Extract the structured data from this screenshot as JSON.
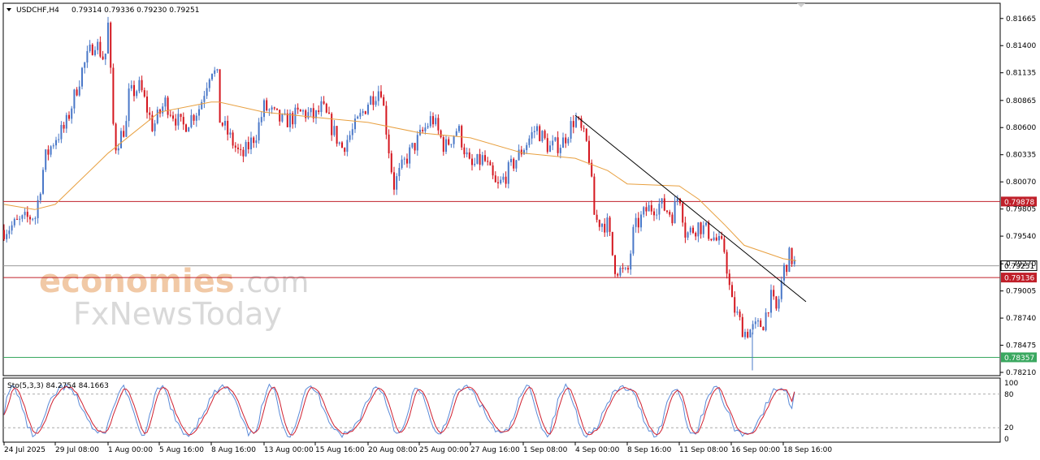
{
  "header": {
    "symbol": "USDCHF,H4",
    "ohlc": "0.79314 0.79336 0.79230 0.79251",
    "stoch_label": "Sto(5,3,3) 84.2754 84.1663"
  },
  "watermark": {
    "line1a": "economies",
    "line1b": ".com",
    "line2": "FxNewsToday"
  },
  "colors": {
    "bull": "#4a78c8",
    "bear": "#d4161f",
    "ma": "#e8a040",
    "trend": "#000000",
    "resistance": "#c0202a",
    "support": "#3aa860",
    "stoch_main": "#5a8ad8",
    "stoch_signal": "#d02030",
    "current": "#9a9a9a"
  },
  "chart_data": {
    "type": "candlestick",
    "symbol": "USDCHF",
    "timeframe": "H4",
    "ylim": [
      0.7821,
      0.8179
    ],
    "y_ticks": [
      "0.81665",
      "0.81400",
      "0.81135",
      "0.80865",
      "0.80600",
      "0.80335",
      "0.80070",
      "0.79805",
      "0.79540",
      "0.79270",
      "0.79005",
      "0.78740",
      "0.78475",
      "0.78210"
    ],
    "x_ticks": [
      "24 Jul 2025",
      "29 Jul 08:00",
      "1 Aug 00:00",
      "5 Aug 16:00",
      "8 Aug 16:00",
      "13 Aug 00:00",
      "15 Aug 16:00",
      "20 Aug 08:00",
      "25 Aug 00:00",
      "27 Aug 16:00",
      "1 Sep 08:00",
      "4 Sep 00:00",
      "8 Sep 16:00",
      "11 Sep 08:00",
      "16 Sep 00:00",
      "18 Sep 16:00"
    ],
    "price_lines": [
      {
        "label": "0.79878",
        "value": 0.79878,
        "role": "resistance"
      },
      {
        "label": "0.79251",
        "value": 0.79251,
        "role": "current"
      },
      {
        "label": "0.79136",
        "value": 0.79136,
        "role": "resistance"
      },
      {
        "label": "0.78357",
        "value": 0.78357,
        "role": "support"
      }
    ],
    "trendline": {
      "from": {
        "x": "4 Sep 00:00",
        "y": 0.8072
      },
      "to": {
        "x": "19 Sep 20:00",
        "y": 0.789
      }
    },
    "close_path": [
      {
        "x": "24 Jul 2025",
        "y": 0.796
      },
      {
        "x": "26 Jul 00:00",
        "y": 0.7975
      },
      {
        "x": "28 Jul 00:00",
        "y": 0.797
      },
      {
        "x": "28 Jul 16:00",
        "y": 0.803
      },
      {
        "x": "29 Jul 08:00",
        "y": 0.805
      },
      {
        "x": "29 Jul 20:00",
        "y": 0.806
      },
      {
        "x": "30 Jul 16:00",
        "y": 0.8115
      },
      {
        "x": "31 Jul 08:00",
        "y": 0.8145
      },
      {
        "x": "31 Jul 20:00",
        "y": 0.8125
      },
      {
        "x": "1 Aug 00:00",
        "y": 0.816
      },
      {
        "x": "1 Aug 08:00",
        "y": 0.804
      },
      {
        "x": "2 Aug 00:00",
        "y": 0.8065
      },
      {
        "x": "4 Aug 00:00",
        "y": 0.809
      },
      {
        "x": "4 Aug 16:00",
        "y": 0.81
      },
      {
        "x": "5 Aug 08:00",
        "y": 0.806
      },
      {
        "x": "6 Aug 00:00",
        "y": 0.8085
      },
      {
        "x": "7 Aug 00:00",
        "y": 0.806
      },
      {
        "x": "8 Aug 00:00",
        "y": 0.808
      },
      {
        "x": "8 Aug 16:00",
        "y": 0.812
      },
      {
        "x": "9 Aug 00:00",
        "y": 0.8105
      },
      {
        "x": "11 Aug 00:00",
        "y": 0.807
      },
      {
        "x": "12 Aug 00:00",
        "y": 0.803
      },
      {
        "x": "12 Aug 16:00",
        "y": 0.8055
      },
      {
        "x": "13 Aug 00:00",
        "y": 0.808
      },
      {
        "x": "14 Aug 00:00",
        "y": 0.8065
      },
      {
        "x": "15 Aug 00:00",
        "y": 0.8075
      },
      {
        "x": "15 Aug 16:00",
        "y": 0.807
      },
      {
        "x": "18 Aug 00:00",
        "y": 0.808
      },
      {
        "x": "19 Aug 00:00",
        "y": 0.804
      },
      {
        "x": "19 Aug 16:00",
        "y": 0.806
      },
      {
        "x": "20 Aug 08:00",
        "y": 0.8085
      },
      {
        "x": "21 Aug 00:00",
        "y": 0.81
      },
      {
        "x": "21 Aug 16:00",
        "y": 0.8003
      },
      {
        "x": "22 Aug 08:00",
        "y": 0.803
      },
      {
        "x": "25 Aug 00:00",
        "y": 0.805
      },
      {
        "x": "25 Aug 16:00",
        "y": 0.807
      },
      {
        "x": "26 Aug 08:00",
        "y": 0.804
      },
      {
        "x": "27 Aug 00:00",
        "y": 0.806
      },
      {
        "x": "27 Aug 16:00",
        "y": 0.802
      },
      {
        "x": "28 Aug 08:00",
        "y": 0.803
      },
      {
        "x": "29 Aug 00:00",
        "y": 0.8
      },
      {
        "x": "29 Aug 16:00",
        "y": 0.802
      },
      {
        "x": "1 Sep 08:00",
        "y": 0.804
      },
      {
        "x": "2 Sep 00:00",
        "y": 0.806
      },
      {
        "x": "2 Sep 16:00",
        "y": 0.804
      },
      {
        "x": "3 Sep 08:00",
        "y": 0.8045
      },
      {
        "x": "4 Sep 00:00",
        "y": 0.807
      },
      {
        "x": "4 Sep 16:00",
        "y": 0.804
      },
      {
        "x": "5 Sep 00:00",
        "y": 0.797
      },
      {
        "x": "5 Sep 16:00",
        "y": 0.7965
      },
      {
        "x": "8 Sep 00:00",
        "y": 0.7925
      },
      {
        "x": "8 Sep 16:00",
        "y": 0.7915
      },
      {
        "x": "9 Sep 00:00",
        "y": 0.796
      },
      {
        "x": "9 Sep 16:00",
        "y": 0.798
      },
      {
        "x": "10 Sep 08:00",
        "y": 0.7985
      },
      {
        "x": "11 Sep 00:00",
        "y": 0.7975
      },
      {
        "x": "11 Sep 08:00",
        "y": 0.7998
      },
      {
        "x": "11 Sep 16:00",
        "y": 0.7955
      },
      {
        "x": "12 Sep 08:00",
        "y": 0.7965
      },
      {
        "x": "15 Sep 00:00",
        "y": 0.7955
      },
      {
        "x": "15 Sep 16:00",
        "y": 0.794
      },
      {
        "x": "16 Sep 00:00",
        "y": 0.789
      },
      {
        "x": "16 Sep 16:00",
        "y": 0.786
      },
      {
        "x": "17 Sep 08:00",
        "y": 0.7865
      },
      {
        "x": "17 Sep 16:00",
        "y": 0.787
      },
      {
        "x": "18 Sep 00:00",
        "y": 0.7895
      },
      {
        "x": "18 Sep 08:00",
        "y": 0.788
      },
      {
        "x": "18 Sep 16:00",
        "y": 0.792
      },
      {
        "x": "19 Sep 00:00",
        "y": 0.7935
      },
      {
        "x": "19 Sep 08:00",
        "y": 0.7925
      }
    ],
    "ma_path": [
      {
        "x": "24 Jul 2025",
        "y": 0.7985
      },
      {
        "x": "28 Jul 00:00",
        "y": 0.798
      },
      {
        "x": "29 Jul 08:00",
        "y": 0.7985
      },
      {
        "x": "1 Aug 00:00",
        "y": 0.8035
      },
      {
        "x": "5 Aug 16:00",
        "y": 0.8075
      },
      {
        "x": "8 Aug 16:00",
        "y": 0.8085
      },
      {
        "x": "11 Aug 00:00",
        "y": 0.8085
      },
      {
        "x": "13 Aug 00:00",
        "y": 0.8075
      },
      {
        "x": "15 Aug 16:00",
        "y": 0.807
      },
      {
        "x": "20 Aug 08:00",
        "y": 0.8065
      },
      {
        "x": "25 Aug 00:00",
        "y": 0.8055
      },
      {
        "x": "27 Aug 16:00",
        "y": 0.805
      },
      {
        "x": "1 Sep 08:00",
        "y": 0.8035
      },
      {
        "x": "4 Sep 00:00",
        "y": 0.803
      },
      {
        "x": "5 Sep 16:00",
        "y": 0.8018
      },
      {
        "x": "8 Sep 16:00",
        "y": 0.8005
      },
      {
        "x": "11 Sep 08:00",
        "y": 0.8003
      },
      {
        "x": "12 Sep 08:00",
        "y": 0.799
      },
      {
        "x": "15 Sep 16:00",
        "y": 0.7965
      },
      {
        "x": "16 Sep 16:00",
        "y": 0.7945
      },
      {
        "x": "18 Sep 16:00",
        "y": 0.7932
      },
      {
        "x": "19 Sep 08:00",
        "y": 0.793
      }
    ],
    "stochastic": {
      "name": "Sto(5,3,3)",
      "main": 84.2754,
      "signal": 84.1663,
      "ylim": [
        0,
        100
      ],
      "levels": [
        80,
        20
      ],
      "y_ticks": [
        "100",
        "80",
        "20",
        "0"
      ]
    }
  }
}
